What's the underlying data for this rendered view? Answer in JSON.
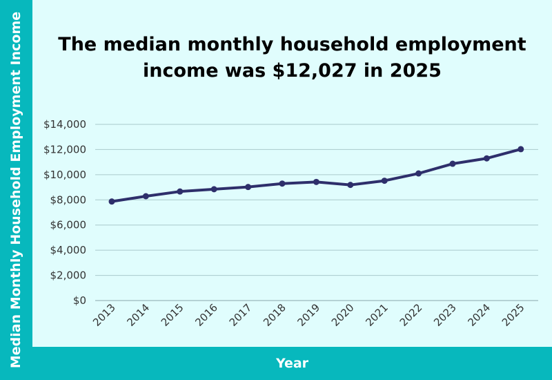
{
  "colors": {
    "accent": "#07b8bd",
    "panel": "#e0fdfd",
    "line": "#2e2f6b",
    "grid": "#a9c9cc"
  },
  "chart_data": {
    "type": "line",
    "title_lines": [
      "The median monthly household employment",
      "income was $12,027 in 2025"
    ],
    "xlabel": "Year",
    "ylabel": "Median Monthly Household Employment Income",
    "ylim": [
      0,
      14000
    ],
    "y_tick_labels": [
      "$0",
      "$2,000",
      "$4,000",
      "$6,000",
      "$8,000",
      "$10,000",
      "$12,000",
      "$14,000"
    ],
    "y_tick_values": [
      0,
      2000,
      4000,
      6000,
      8000,
      10000,
      12000,
      14000
    ],
    "x": [
      "2013",
      "2014",
      "2015",
      "2016",
      "2017",
      "2018",
      "2019",
      "2020",
      "2021",
      "2022",
      "2023",
      "2024",
      "2025"
    ],
    "series": [
      {
        "values": [
          7870,
          8290,
          8666,
          8846,
          9023,
          9293,
          9425,
          9189,
          9520,
          10099,
          10869,
          11297,
          12027
        ]
      }
    ],
    "grid": true,
    "legend": "none"
  }
}
